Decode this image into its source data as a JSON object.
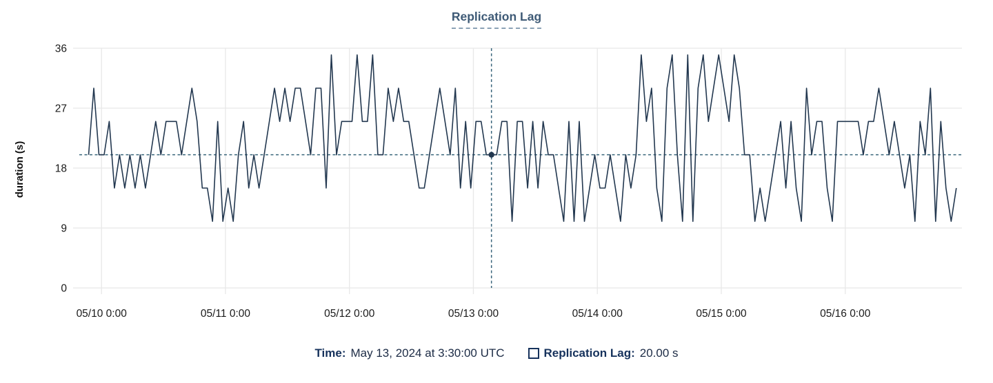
{
  "title": "Replication Lag",
  "y_axis_label": "duration (s)",
  "tooltip": {
    "time_label": "Time:",
    "time_value": "May 13, 2024 at 3:30:00 UTC",
    "series_label": "Replication Lag:",
    "series_value": "20.00 s"
  },
  "colors": {
    "line": "#22374f",
    "crosshair": "#39657b",
    "marker": "#22374f",
    "gridline": "#e8e8e8",
    "tick_text": "#1a1a1a",
    "title": "#3e5a76",
    "legend_label": "#16325c",
    "legend_value": "#1c2b45"
  },
  "chart_data": {
    "type": "line",
    "title": "Replication Lag",
    "xlabel": "",
    "ylabel": "duration (s)",
    "ylim": [
      0,
      36
    ],
    "y_ticks": [
      0,
      9,
      18,
      27,
      36
    ],
    "x_ticks": [
      "05/10 0:00",
      "05/11 0:00",
      "05/12 0:00",
      "05/13 0:00",
      "05/14 0:00",
      "05/15 0:00",
      "05/16 0:00"
    ],
    "x_tick_hours": [
      0,
      24,
      48,
      72,
      96,
      120,
      144
    ],
    "x_range_hours": [
      -4.3,
      166.6
    ],
    "x_start_hours": -2.5,
    "x_step_hours": 1,
    "grid": true,
    "legend_position": "bottom",
    "values": [
      20,
      30,
      20,
      20,
      25,
      15,
      20,
      15,
      20,
      15,
      20,
      15,
      20,
      25,
      20,
      25,
      25,
      25,
      20,
      25,
      30,
      25,
      15,
      15,
      10,
      25,
      10,
      15,
      10,
      20,
      25,
      15,
      20,
      15,
      20,
      25,
      30,
      25,
      30,
      25,
      30,
      30,
      25,
      20,
      30,
      30,
      15,
      35,
      20,
      25,
      25,
      25,
      35,
      25,
      25,
      35,
      20,
      20,
      30,
      25,
      30,
      25,
      25,
      20,
      15,
      15,
      20,
      25,
      30,
      25,
      20,
      30,
      15,
      25,
      15,
      25,
      25,
      20,
      20,
      20,
      25,
      25,
      10,
      25,
      25,
      15,
      25,
      15,
      25,
      20,
      20,
      15,
      10,
      25,
      10,
      25,
      10,
      15,
      20,
      15,
      15,
      20,
      15,
      10,
      20,
      15,
      20,
      35,
      25,
      30,
      15,
      10,
      30,
      35,
      20,
      10,
      35,
      10,
      30,
      35,
      25,
      30,
      35,
      30,
      25,
      35,
      30,
      20,
      20,
      10,
      15,
      10,
      15,
      20,
      25,
      15,
      25,
      15,
      10,
      30,
      20,
      25,
      25,
      15,
      10,
      25,
      25,
      25,
      25,
      25,
      20,
      25,
      25,
      30,
      25,
      20,
      25,
      20,
      15,
      20,
      10,
      25,
      20,
      30,
      10,
      25,
      15,
      10,
      15
    ],
    "marker_index": 78,
    "marker": {
      "time": "May 13, 2024 at 3:30:00 UTC",
      "value_s": 20.0
    },
    "crosshair": {
      "x_label": "May 13, 2024 at 3:30:00 UTC",
      "y_value": 20
    }
  }
}
